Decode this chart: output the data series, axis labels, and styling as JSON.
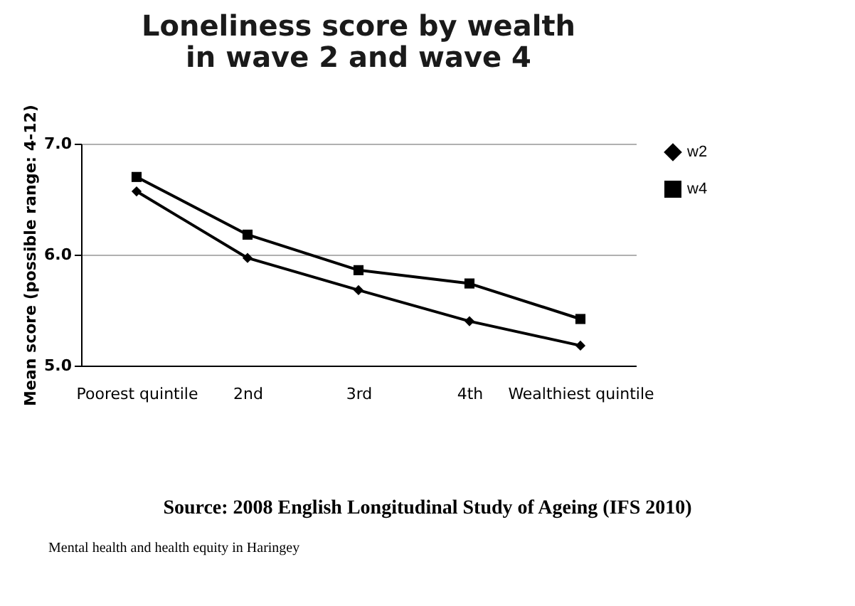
{
  "chart_data": {
    "type": "line",
    "title": "Loneliness score by wealth\nin wave 2 and wave 4",
    "ylabel": "Mean score (possible range: 4-12)",
    "categories": [
      "Poorest quintile",
      "2nd",
      "3rd",
      "4th",
      "Wealthiest quintile"
    ],
    "series": [
      {
        "name": "w2",
        "color": "#000000",
        "marker": "diamond",
        "values": [
          6.57,
          5.97,
          5.68,
          5.4,
          5.18
        ]
      },
      {
        "name": "w4",
        "color": "#000000",
        "marker": "square",
        "values": [
          6.7,
          6.18,
          5.86,
          5.74,
          5.42
        ]
      }
    ],
    "ylim": [
      5,
      7
    ],
    "yticks": [
      {
        "value": 5,
        "label": "5.0"
      },
      {
        "value": 6,
        "label": "6.0"
      },
      {
        "value": 7,
        "label": "7.0"
      }
    ],
    "grid": "y",
    "legend": "right",
    "annotations": [
      "Source: 2008 English Longitudinal Study of Ageing (IFS 2010)",
      "Mental health and health equity in Haringey"
    ]
  }
}
